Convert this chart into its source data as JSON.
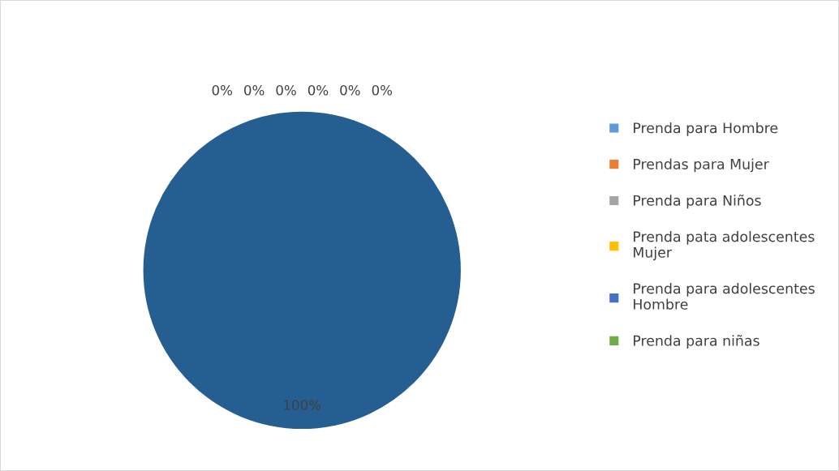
{
  "chart_data": {
    "type": "pie",
    "categories": [
      "Prenda para Hombre",
      "Prendas para Mujer",
      "Prenda para Niños",
      "Prenda pata adolescentes Mujer",
      "Prenda para adolescentes Hombre",
      "Prenda para niñas",
      null
    ],
    "values": [
      0,
      0,
      0,
      0,
      0,
      0,
      100
    ],
    "colors": [
      "#5b9bd5",
      "#ed7d31",
      "#a5a5a5",
      "#ffc000",
      "#4472c4",
      "#70ad47",
      "#255e91"
    ],
    "value_labels": [
      "0%",
      "0%",
      "0%",
      "0%",
      "0%",
      "0%",
      "100%"
    ],
    "legend": "right"
  }
}
